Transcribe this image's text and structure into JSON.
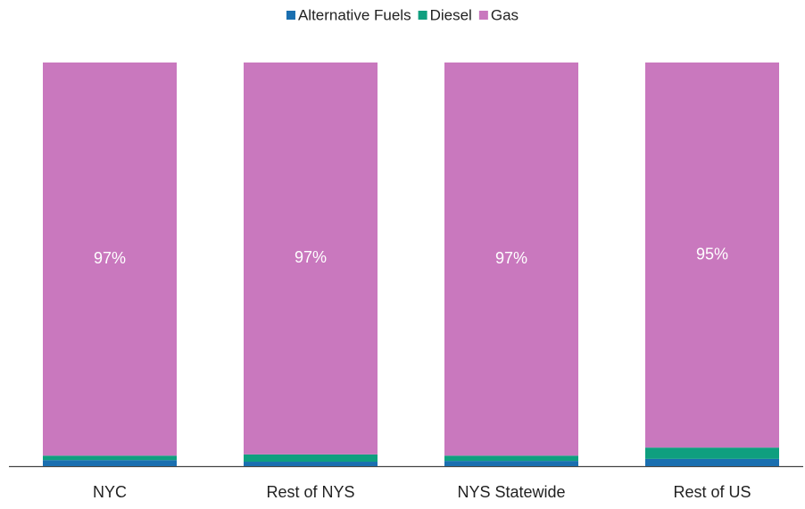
{
  "chart_data": {
    "type": "stacked_bar",
    "categories": [
      "NYC",
      "Rest of NYS",
      "NYS Statewide",
      "Rest of US"
    ],
    "series": [
      {
        "name": "Alternative Fuels",
        "color": "#1a6fb0",
        "values": [
          1.5,
          1.1,
          1.3,
          1.8
        ]
      },
      {
        "name": "Diesel",
        "color": "#0f9f7f",
        "values": [
          1.1,
          1.8,
          1.3,
          2.8
        ]
      },
      {
        "name": "Gas",
        "color": "#c978be",
        "values": [
          97.4,
          97.1,
          97.4,
          95.4
        ],
        "value_labels": [
          "97%",
          "97%",
          "97%",
          "95%"
        ]
      }
    ],
    "ylim": [
      0,
      100
    ],
    "legend": "top"
  }
}
